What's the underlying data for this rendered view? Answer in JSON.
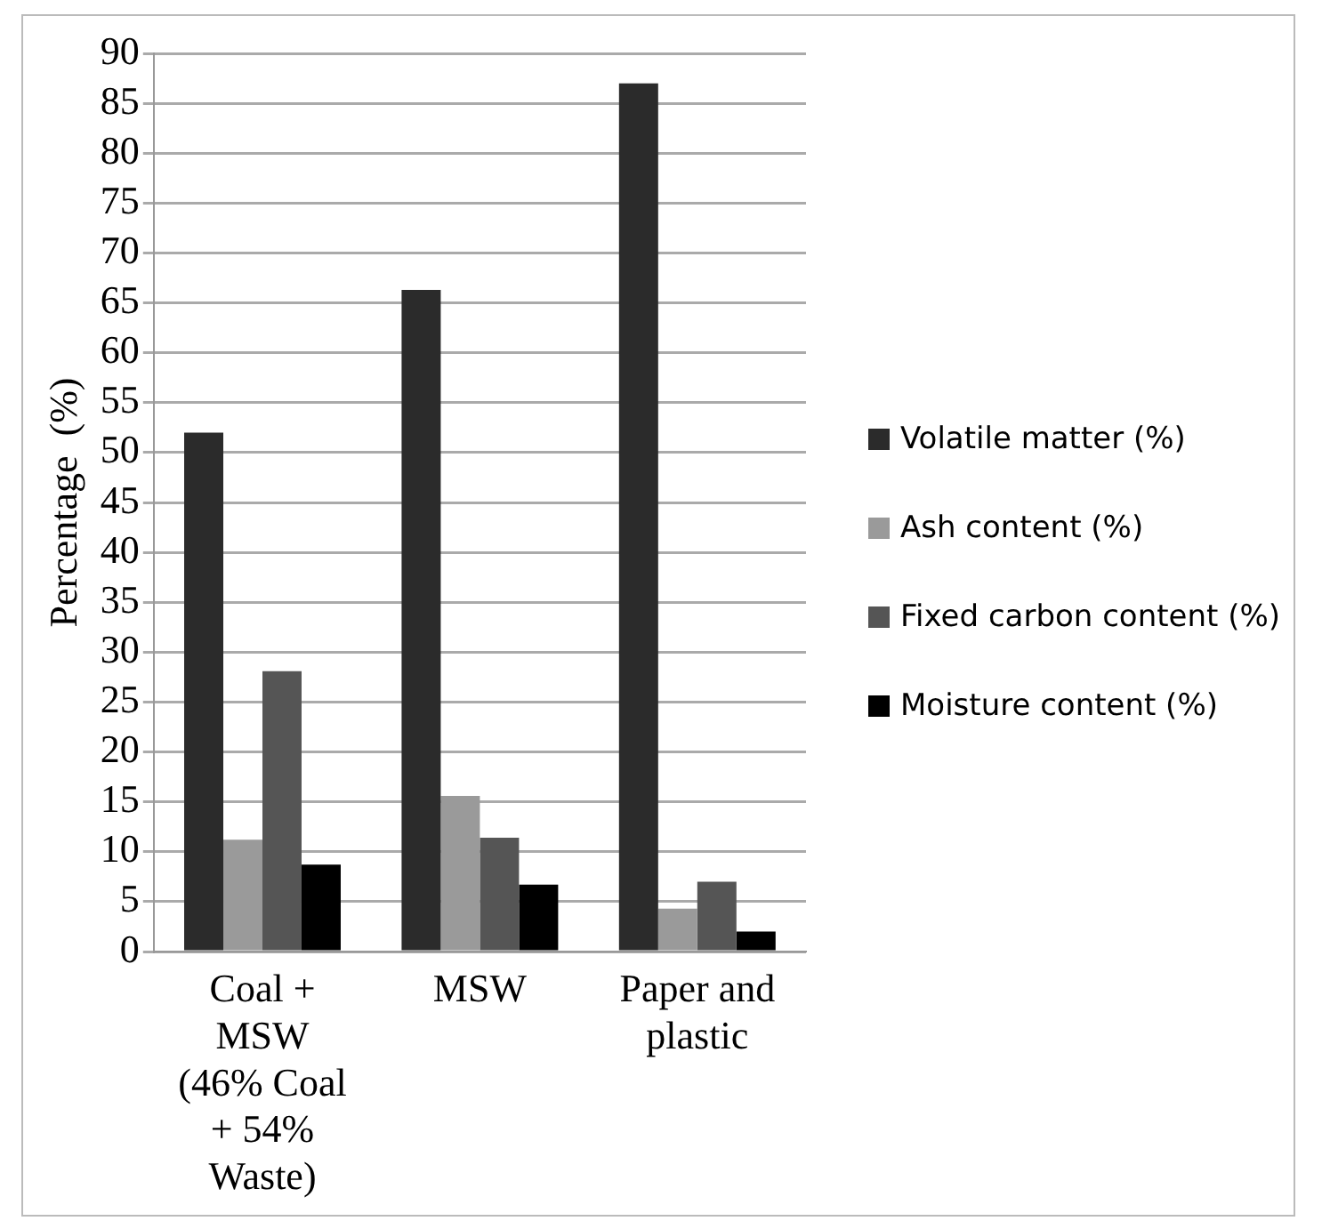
{
  "chart_data": {
    "type": "bar",
    "ylabel": "Percentage  (%)",
    "categories": [
      "Coal + MSW (46% Coal + 54% Waste)",
      "MSW",
      "Paper and plastic"
    ],
    "series": [
      {
        "name": "Volatile matter (%)",
        "color": "#2b2b2b",
        "values": [
          52,
          66.3,
          87
        ]
      },
      {
        "name": "Ash content (%)",
        "color": "#9a9a9a",
        "values": [
          11.2,
          15.6,
          4.3
        ]
      },
      {
        "name": "Fixed carbon content (%)",
        "color": "#555555",
        "values": [
          28.1,
          11.4,
          7
        ]
      },
      {
        "name": "Moisture content (%)",
        "color": "#000000",
        "values": [
          8.7,
          6.7,
          2
        ]
      }
    ],
    "ylim": [
      0,
      90
    ],
    "yticks": [
      0,
      5,
      10,
      15,
      20,
      25,
      30,
      35,
      40,
      45,
      50,
      55,
      60,
      65,
      70,
      75,
      80,
      85,
      90
    ],
    "grid": "y",
    "legend": "right"
  }
}
